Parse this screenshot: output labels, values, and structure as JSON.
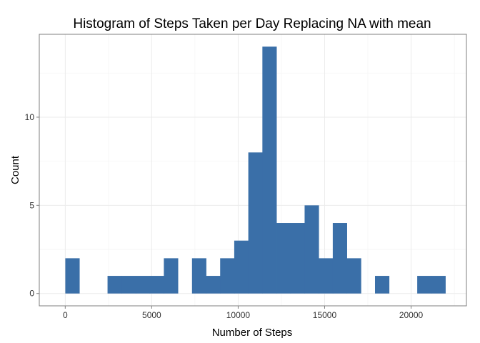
{
  "chart_data": {
    "type": "bar",
    "title": "Histogram of Steps Taken per Day Replacing NA with mean",
    "xlabel": "Number of Steps",
    "ylabel": "Count",
    "bin_width": 814,
    "x": [
      412,
      1226,
      2040,
      2854,
      3668,
      4482,
      5296,
      6110,
      6924,
      7738,
      8552,
      9366,
      10180,
      10994,
      11808,
      12622,
      13436,
      14250,
      15064,
      15878,
      16692,
      17506,
      18320,
      19134,
      19948,
      20762,
      21576
    ],
    "values": [
      2,
      0,
      0,
      1,
      1,
      1,
      1,
      2,
      0,
      2,
      1,
      2,
      3,
      8,
      14,
      4,
      4,
      5,
      2,
      4,
      2,
      0,
      1,
      0,
      0,
      1,
      1
    ],
    "bar_color": "#3A6FA8",
    "xlim": [
      -1500,
      23200
    ],
    "ylim": [
      -0.7,
      14.7
    ],
    "x_ticks": [
      0,
      5000,
      10000,
      15000,
      20000
    ],
    "y_ticks": [
      0,
      5,
      10
    ],
    "grid": true,
    "legend": "none"
  }
}
